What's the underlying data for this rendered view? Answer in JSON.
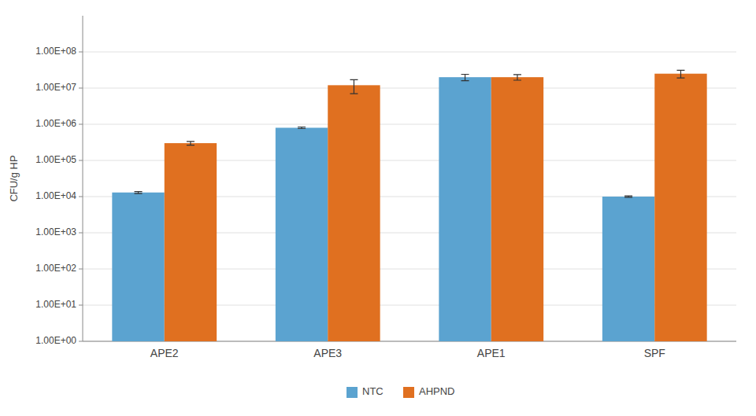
{
  "chart_data": {
    "type": "bar",
    "ylabel": "CFU/g HP",
    "categories": [
      "APE2",
      "APE3",
      "APE1",
      "SPF"
    ],
    "series": [
      {
        "name": "NTC",
        "color": "#5BA3D0",
        "values": [
          13000,
          800000,
          20000000,
          10000
        ],
        "errors": [
          800,
          40000,
          4000000,
          400
        ]
      },
      {
        "name": "AHPND",
        "color": "#E07020",
        "values": [
          300000,
          12000000,
          20000000,
          25000000
        ],
        "errors": [
          35000,
          5000000,
          3500000,
          6000000
        ]
      }
    ],
    "log": "y",
    "ylim": [
      1,
      1000000000
    ],
    "yticks": [
      {
        "value": 1,
        "label": "1.00E+00"
      },
      {
        "value": 10,
        "label": "1.00E+01"
      },
      {
        "value": 100,
        "label": "1.00E+02"
      },
      {
        "value": 1000,
        "label": "1.00E+03"
      },
      {
        "value": 10000,
        "label": "1.00E+04"
      },
      {
        "value": 100000,
        "label": "1.00E+05"
      },
      {
        "value": 1000000,
        "label": "1.00E+06"
      },
      {
        "value": 10000000,
        "label": "1.00E+07"
      },
      {
        "value": 100000000,
        "label": "1.00E+08"
      }
    ],
    "grid": true,
    "legend": "bottom"
  }
}
